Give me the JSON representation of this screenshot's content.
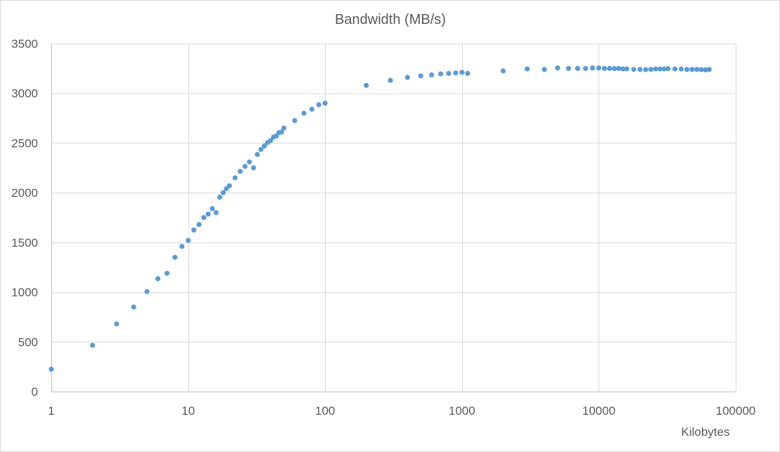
{
  "chart_data": {
    "type": "scatter",
    "title": "Bandwidth (MB/s)",
    "xlabel": "Kilobytes",
    "ylabel": "",
    "x_scale": "log",
    "xlim": [
      1,
      100000
    ],
    "ylim": [
      0,
      3500
    ],
    "grid": true,
    "x_ticks": [
      1,
      10,
      100,
      1000,
      10000,
      100000
    ],
    "x_tick_labels": [
      "1",
      "10",
      "100",
      "1000",
      "10000",
      "100000"
    ],
    "y_ticks": [
      0,
      500,
      1000,
      1500,
      2000,
      2500,
      3000,
      3500
    ],
    "y_tick_labels": [
      "0",
      "500",
      "1000",
      "1500",
      "2000",
      "2500",
      "3000",
      "3500"
    ],
    "marker_color": "#5b9bd5",
    "series": [
      {
        "name": "Bandwidth (MB/s)",
        "points": [
          [
            1,
            225
          ],
          [
            2,
            465
          ],
          [
            3,
            680
          ],
          [
            4,
            850
          ],
          [
            5,
            1005
          ],
          [
            6,
            1135
          ],
          [
            7,
            1190
          ],
          [
            8,
            1350
          ],
          [
            9,
            1460
          ],
          [
            10,
            1520
          ],
          [
            11,
            1625
          ],
          [
            12,
            1680
          ],
          [
            13,
            1750
          ],
          [
            14,
            1785
          ],
          [
            15,
            1840
          ],
          [
            16,
            1800
          ],
          [
            17,
            1955
          ],
          [
            18,
            2000
          ],
          [
            19,
            2040
          ],
          [
            20,
            2070
          ],
          [
            22,
            2150
          ],
          [
            24,
            2215
          ],
          [
            26,
            2265
          ],
          [
            28,
            2310
          ],
          [
            30,
            2250
          ],
          [
            32,
            2385
          ],
          [
            34,
            2435
          ],
          [
            36,
            2470
          ],
          [
            38,
            2505
          ],
          [
            40,
            2525
          ],
          [
            42,
            2560
          ],
          [
            44,
            2570
          ],
          [
            46,
            2605
          ],
          [
            48,
            2610
          ],
          [
            50,
            2650
          ],
          [
            60,
            2725
          ],
          [
            70,
            2800
          ],
          [
            80,
            2840
          ],
          [
            90,
            2885
          ],
          [
            100,
            2900
          ],
          [
            200,
            3080
          ],
          [
            300,
            3130
          ],
          [
            400,
            3160
          ],
          [
            500,
            3175
          ],
          [
            600,
            3185
          ],
          [
            700,
            3195
          ],
          [
            800,
            3200
          ],
          [
            900,
            3205
          ],
          [
            1000,
            3210
          ],
          [
            1100,
            3200
          ],
          [
            2000,
            3225
          ],
          [
            3000,
            3245
          ],
          [
            4000,
            3240
          ],
          [
            5000,
            3255
          ],
          [
            6000,
            3250
          ],
          [
            7000,
            3250
          ],
          [
            8000,
            3250
          ],
          [
            9000,
            3255
          ],
          [
            10000,
            3255
          ],
          [
            11000,
            3250
          ],
          [
            12000,
            3250
          ],
          [
            13000,
            3248
          ],
          [
            14000,
            3250
          ],
          [
            15000,
            3245
          ],
          [
            16000,
            3245
          ],
          [
            18000,
            3240
          ],
          [
            20000,
            3240
          ],
          [
            22000,
            3238
          ],
          [
            24000,
            3240
          ],
          [
            26000,
            3245
          ],
          [
            28000,
            3245
          ],
          [
            30000,
            3245
          ],
          [
            32000,
            3248
          ],
          [
            36000,
            3245
          ],
          [
            40000,
            3245
          ],
          [
            44000,
            3240
          ],
          [
            48000,
            3240
          ],
          [
            52000,
            3240
          ],
          [
            56000,
            3238
          ],
          [
            60000,
            3235
          ],
          [
            64000,
            3240
          ]
        ]
      }
    ]
  }
}
